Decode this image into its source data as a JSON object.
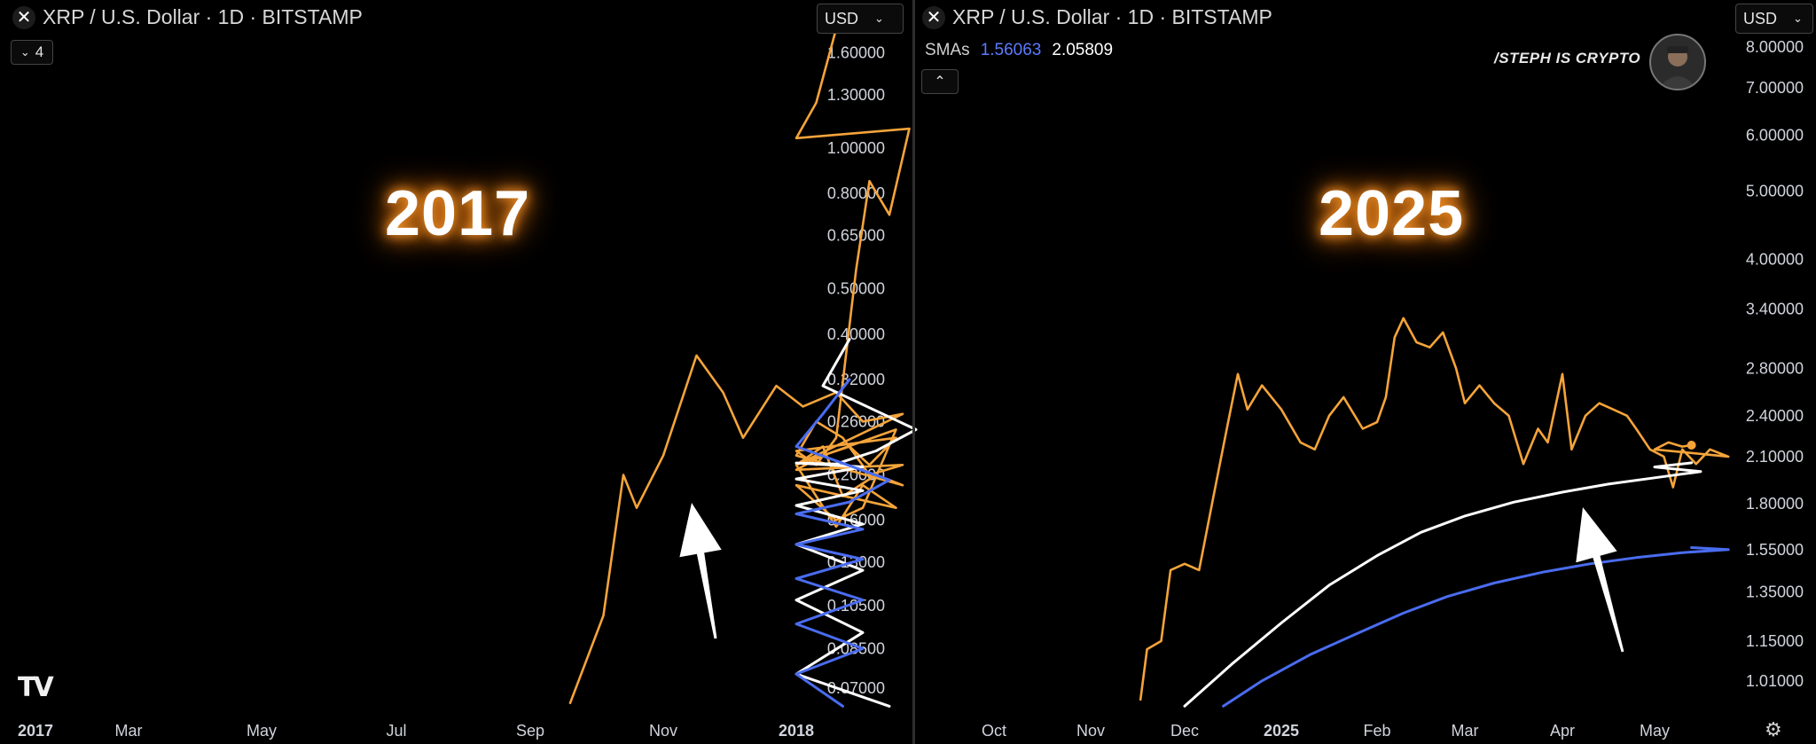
{
  "panels": [
    {
      "title": "XRP / U.S. Dollar · 1D · BITSTAMP",
      "currency_label": "USD",
      "indicator_count": "4",
      "big_year": "2017"
    },
    {
      "title": "XRP / U.S. Dollar · 1D · BITSTAMP",
      "currency_label": "USD",
      "sma_label": "SMAs",
      "sma_value_blue": "1.56063",
      "sma_value_white": "2.05809",
      "big_year": "2025"
    }
  ],
  "branding": {
    "text": "/STEPH IS CRYPTO"
  },
  "colors": {
    "price": "#f5a43a",
    "sma_white": "#ffffff",
    "sma_blue": "#4a6cf0",
    "background": "#000000",
    "axis_text": "#d1d4dc"
  },
  "icons": {
    "close": "close-icon",
    "collapse": "chevron-down-icon",
    "expand": "chevron-up-icon",
    "logo": "tradingview-logo",
    "settings": "gear-icon",
    "arrow": "arrow-up-annotation"
  },
  "chart_data": [
    {
      "type": "line",
      "scale": "log",
      "y_ticks": [
        "1.60000",
        "1.30000",
        "1.00000",
        "0.80000",
        "0.65000",
        "0.50000",
        "0.40000",
        "0.32000",
        "0.26000",
        "0.20000",
        "0.16000",
        "0.13000",
        "0.10500",
        "0.08500",
        "0.07000"
      ],
      "x_ticks": [
        "2017",
        "Mar",
        "May",
        "Jul",
        "Sep",
        "Nov",
        "2018"
      ],
      "ylim": [
        0.063,
        1.9
      ],
      "series": [
        {
          "color": "#f5a43a",
          "points": [
            [
              4.3,
              0.065
            ],
            [
              4.55,
              0.1
            ],
            [
              4.7,
              0.2
            ],
            [
              4.8,
              0.17
            ],
            [
              5.0,
              0.22
            ],
            [
              5.25,
              0.36
            ],
            [
              5.45,
              0.3
            ],
            [
              5.6,
              0.24
            ],
            [
              5.85,
              0.31
            ],
            [
              6.05,
              0.28
            ],
            [
              6.3,
              0.3
            ],
            [
              6.5,
              0.26
            ],
            [
              6.8,
              0.27
            ],
            [
              7.0,
              0.21
            ],
            [
              7.15,
              0.18
            ],
            [
              7.3,
              0.155
            ],
            [
              7.5,
              0.19
            ],
            [
              7.75,
              0.17
            ],
            [
              8.0,
              0.19
            ],
            [
              8.3,
              0.16
            ],
            [
              8.5,
              0.17
            ],
            [
              8.75,
              0.25
            ],
            [
              9.0,
              0.21
            ],
            [
              9.2,
              0.23
            ],
            [
              9.35,
              0.18
            ],
            [
              9.6,
              0.2
            ],
            [
              9.8,
              0.19
            ],
            [
              10.0,
              0.22
            ],
            [
              10.15,
              0.26
            ],
            [
              10.35,
              0.24
            ],
            [
              10.55,
              0.2
            ],
            [
              10.8,
              0.21
            ],
            [
              11.0,
              0.205
            ],
            [
              11.2,
              0.22
            ],
            [
              11.4,
              0.23
            ],
            [
              11.55,
              0.21
            ],
            [
              11.75,
              0.24
            ],
            [
              12.0,
              0.225
            ],
            [
              12.15,
              0.21
            ],
            [
              12.3,
              0.24
            ],
            [
              12.45,
              0.55
            ],
            [
              12.55,
              0.85
            ],
            [
              12.7,
              0.72
            ],
            [
              12.85,
              1.1
            ],
            [
              13.0,
              1.05
            ],
            [
              13.15,
              1.25
            ],
            [
              13.3,
              1.8
            ],
            [
              13.4,
              1.95
            ]
          ]
        },
        {
          "color": "#ffffff",
          "points": [
            [
              6.7,
              0.064
            ],
            [
              7.0,
              0.075
            ],
            [
              7.5,
              0.092
            ],
            [
              8.0,
              0.108
            ],
            [
              8.5,
              0.125
            ],
            [
              9.0,
              0.142
            ],
            [
              9.5,
              0.157
            ],
            [
              10.0,
              0.172
            ],
            [
              10.5,
              0.185
            ],
            [
              11.0,
              0.196
            ],
            [
              11.5,
              0.208
            ],
            [
              12.0,
              0.212
            ],
            [
              12.3,
              0.211
            ],
            [
              12.6,
              0.225
            ],
            [
              12.9,
              0.25
            ],
            [
              13.2,
              0.31
            ],
            [
              13.4,
              0.39
            ]
          ]
        },
        {
          "color": "#4a6cf0",
          "points": [
            [
              7.35,
              0.064
            ],
            [
              8.0,
              0.075
            ],
            [
              8.5,
              0.085
            ],
            [
              9.0,
              0.096
            ],
            [
              9.5,
              0.108
            ],
            [
              10.0,
              0.12
            ],
            [
              10.5,
              0.132
            ],
            [
              11.0,
              0.142
            ],
            [
              11.5,
              0.153
            ],
            [
              12.0,
              0.165
            ],
            [
              12.4,
              0.175
            ],
            [
              12.7,
              0.195
            ],
            [
              13.0,
              0.23
            ],
            [
              13.2,
              0.27
            ],
            [
              13.4,
              0.32
            ]
          ]
        }
      ],
      "annotation": "arrow"
    },
    {
      "type": "line",
      "scale": "log",
      "y_ticks": [
        "8.00000",
        "7.00000",
        "6.00000",
        "5.00000",
        "4.00000",
        "3.40000",
        "2.80000",
        "2.40000",
        "2.10000",
        "1.80000",
        "1.55000",
        "1.35000",
        "1.15000",
        "1.01000"
      ],
      "x_ticks": [
        "Oct",
        "Nov",
        "Dec",
        "2025",
        "Feb",
        "Mar",
        "Apr",
        "May"
      ],
      "ylim": [
        0.92,
        8.8
      ],
      "series": [
        {
          "color": "#f5a43a",
          "points": [
            [
              1.53,
              0.95
            ],
            [
              1.6,
              1.12
            ],
            [
              1.75,
              1.15
            ],
            [
              1.85,
              1.45
            ],
            [
              2.0,
              1.48
            ],
            [
              2.15,
              1.45
            ],
            [
              2.3,
              1.85
            ],
            [
              2.45,
              2.35
            ],
            [
              2.55,
              2.75
            ],
            [
              2.65,
              2.45
            ],
            [
              2.8,
              2.65
            ],
            [
              3.0,
              2.45
            ],
            [
              3.2,
              2.2
            ],
            [
              3.35,
              2.15
            ],
            [
              3.5,
              2.4
            ],
            [
              3.65,
              2.55
            ],
            [
              3.85,
              2.3
            ],
            [
              4.0,
              2.35
            ],
            [
              4.1,
              2.55
            ],
            [
              4.2,
              3.1
            ],
            [
              4.3,
              3.3
            ],
            [
              4.45,
              3.05
            ],
            [
              4.6,
              3.0
            ],
            [
              4.75,
              3.15
            ],
            [
              4.9,
              2.8
            ],
            [
              5.0,
              2.5
            ],
            [
              5.15,
              2.65
            ],
            [
              5.3,
              2.5
            ],
            [
              5.45,
              2.4
            ],
            [
              5.6,
              2.05
            ],
            [
              5.75,
              2.3
            ],
            [
              5.85,
              2.2
            ],
            [
              6.0,
              2.75
            ],
            [
              6.1,
              2.15
            ],
            [
              6.25,
              2.4
            ],
            [
              6.4,
              2.5
            ],
            [
              6.55,
              2.45
            ],
            [
              6.7,
              2.4
            ],
            [
              6.8,
              2.3
            ],
            [
              6.95,
              2.15
            ],
            [
              7.1,
              2.1
            ],
            [
              7.2,
              1.9
            ],
            [
              7.3,
              2.15
            ],
            [
              7.45,
              2.05
            ],
            [
              7.6,
              2.15
            ],
            [
              7.8,
              2.1
            ],
            [
              8.0,
              2.15
            ],
            [
              8.15,
              2.2
            ],
            [
              8.3,
              2.17
            ],
            [
              8.4,
              2.18
            ]
          ]
        },
        {
          "color": "#ffffff",
          "points": [
            [
              2.0,
              0.93
            ],
            [
              2.5,
              1.07
            ],
            [
              3.0,
              1.22
            ],
            [
              3.5,
              1.38
            ],
            [
              4.0,
              1.52
            ],
            [
              4.5,
              1.64
            ],
            [
              5.0,
              1.73
            ],
            [
              5.5,
              1.81
            ],
            [
              6.0,
              1.87
            ],
            [
              6.5,
              1.92
            ],
            [
              7.0,
              1.96
            ],
            [
              7.5,
              2.0
            ],
            [
              8.0,
              2.03
            ],
            [
              8.4,
              2.058
            ]
          ]
        },
        {
          "color": "#4a6cf0",
          "points": [
            [
              2.4,
              0.93
            ],
            [
              2.8,
              1.01
            ],
            [
              3.3,
              1.1
            ],
            [
              3.8,
              1.18
            ],
            [
              4.3,
              1.26
            ],
            [
              4.8,
              1.33
            ],
            [
              5.3,
              1.39
            ],
            [
              5.8,
              1.44
            ],
            [
              6.3,
              1.48
            ],
            [
              6.8,
              1.51
            ],
            [
              7.3,
              1.535
            ],
            [
              7.8,
              1.55
            ],
            [
              8.4,
              1.5606
            ]
          ]
        }
      ],
      "annotation": "arrow"
    }
  ]
}
